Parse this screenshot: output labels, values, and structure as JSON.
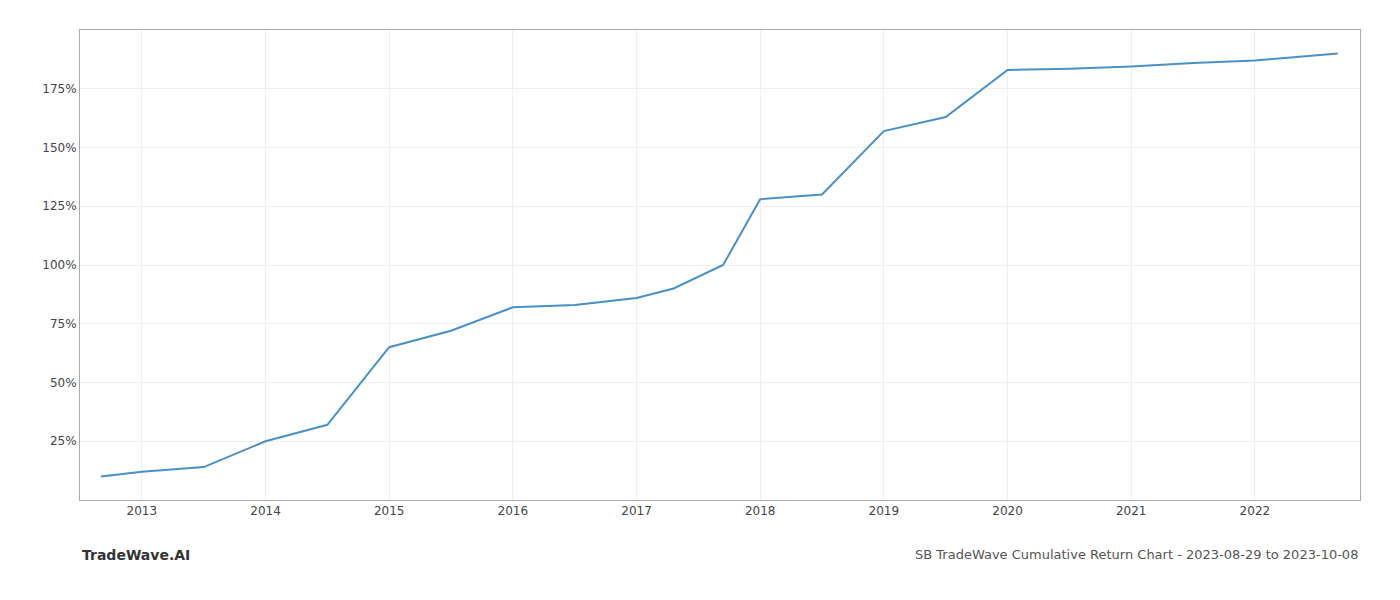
{
  "chart_data": {
    "type": "line",
    "title": "SB TradeWave Cumulative Return Chart - 2023-08-29 to 2023-10-08",
    "annotations": [
      {
        "text": "TradeWave.AI"
      }
    ],
    "x": [
      2012.67,
      2013.0,
      2013.5,
      2014.0,
      2014.5,
      2015.0,
      2015.5,
      2016.0,
      2016.5,
      2017.0,
      2017.3,
      2017.7,
      2018.0,
      2018.5,
      2019.0,
      2019.5,
      2020.0,
      2020.5,
      2021.0,
      2021.5,
      2022.0,
      2022.67
    ],
    "values": [
      10,
      12,
      14,
      25,
      32,
      65,
      72,
      82,
      83,
      86,
      90,
      100,
      128,
      130,
      157,
      163,
      183,
      183.5,
      184.5,
      186,
      187,
      190
    ],
    "color": "#4a90c4",
    "xlim": [
      2012.5,
      2022.85
    ],
    "xticks": [
      2013,
      2014,
      2015,
      2016,
      2017,
      2018,
      2019,
      2020,
      2021,
      2022
    ],
    "ylim": [
      0,
      200
    ],
    "yticks": [
      {
        "value": 25,
        "label": "25%"
      },
      {
        "value": 50,
        "label": "50%"
      },
      {
        "value": 75,
        "label": "75%"
      },
      {
        "value": 100,
        "label": "100%"
      },
      {
        "value": 125,
        "label": "125%"
      },
      {
        "value": 150,
        "label": "150%"
      },
      {
        "value": 175,
        "label": "175%"
      }
    ],
    "grid": true
  }
}
